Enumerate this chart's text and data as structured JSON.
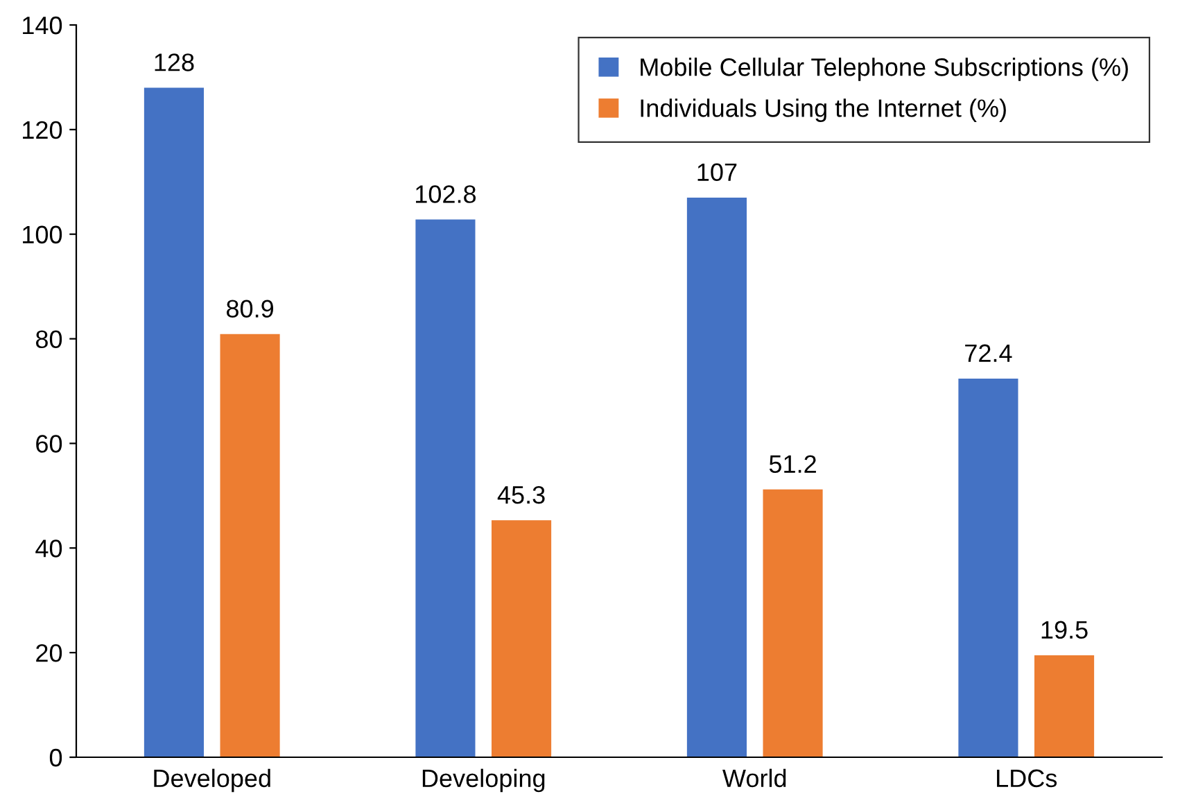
{
  "chart_data": {
    "type": "bar",
    "categories": [
      "Developed",
      "Developing",
      "World",
      "LDCs"
    ],
    "series": [
      {
        "name": "Mobile Cellular Telephone Subscriptions (%)",
        "color": "#4472c4",
        "values": [
          128,
          102.8,
          107,
          72.4
        ]
      },
      {
        "name": "Individuals Using the Internet (%)",
        "color": "#ed7d31",
        "values": [
          80.9,
          45.3,
          51.2,
          19.5
        ]
      }
    ],
    "ylim": [
      0,
      140
    ],
    "yticks": [
      0,
      20,
      40,
      60,
      80,
      100,
      120,
      140
    ],
    "data_labels": true,
    "legend": "top right",
    "grid": false
  }
}
